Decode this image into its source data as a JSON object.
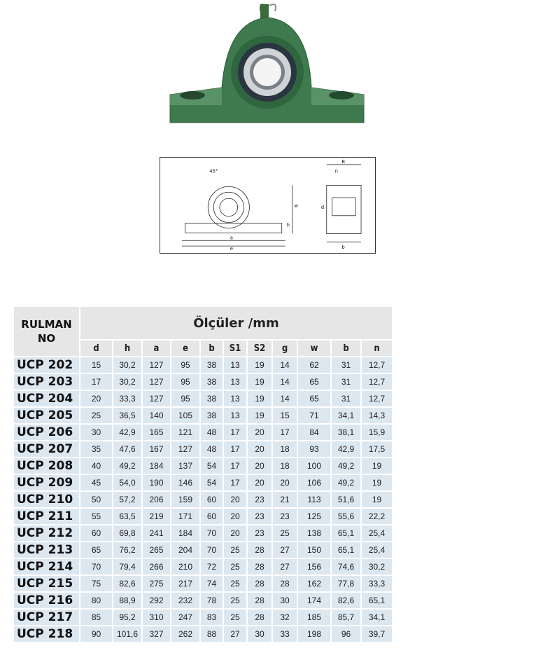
{
  "table": {
    "rowhead": [
      "RULMAN",
      "NO"
    ],
    "title": "Ölçüler /mm",
    "columns": [
      "d",
      "h",
      "a",
      "e",
      "b",
      "S1",
      "S2",
      "g",
      "w",
      "b",
      "n"
    ],
    "rows": [
      {
        "no": "UCP 202",
        "v": [
          "15",
          "30,2",
          "127",
          "95",
          "38",
          "13",
          "19",
          "14",
          "62",
          "31",
          "12,7"
        ]
      },
      {
        "no": "UCP 203",
        "v": [
          "17",
          "30,2",
          "127",
          "95",
          "38",
          "13",
          "19",
          "14",
          "65",
          "31",
          "12,7"
        ]
      },
      {
        "no": "UCP 204",
        "v": [
          "20",
          "33,3",
          "127",
          "95",
          "38",
          "13",
          "19",
          "14",
          "65",
          "31",
          "12,7"
        ]
      },
      {
        "no": "UCP 205",
        "v": [
          "25",
          "36,5",
          "140",
          "105",
          "38",
          "13",
          "19",
          "15",
          "71",
          "34,1",
          "14,3"
        ]
      },
      {
        "no": "UCP 206",
        "v": [
          "30",
          "42,9",
          "165",
          "121",
          "48",
          "17",
          "20",
          "17",
          "84",
          "38,1",
          "15,9"
        ]
      },
      {
        "no": "UCP 207",
        "v": [
          "35",
          "47,6",
          "167",
          "127",
          "48",
          "17",
          "20",
          "18",
          "93",
          "42,9",
          "17,5"
        ]
      },
      {
        "no": "UCP 208",
        "v": [
          "40",
          "49,2",
          "184",
          "137",
          "54",
          "17",
          "20",
          "18",
          "100",
          "49,2",
          "19"
        ]
      },
      {
        "no": "UCP 209",
        "v": [
          "45",
          "54,0",
          "190",
          "146",
          "54",
          "17",
          "20",
          "20",
          "106",
          "49,2",
          "19"
        ]
      },
      {
        "no": "UCP 210",
        "v": [
          "50",
          "57,2",
          "206",
          "159",
          "60",
          "20",
          "23",
          "21",
          "113",
          "51,6",
          "19"
        ]
      },
      {
        "no": "UCP 211",
        "v": [
          "55",
          "63,5",
          "219",
          "171",
          "60",
          "20",
          "23",
          "23",
          "125",
          "55,6",
          "22,2"
        ]
      },
      {
        "no": "UCP 212",
        "v": [
          "60",
          "69,8",
          "241",
          "184",
          "70",
          "20",
          "23",
          "25",
          "138",
          "65,1",
          "25,4"
        ]
      },
      {
        "no": "UCP 213",
        "v": [
          "65",
          "76,2",
          "265",
          "204",
          "70",
          "25",
          "28",
          "27",
          "150",
          "65,1",
          "25,4"
        ]
      },
      {
        "no": "UCP 214",
        "v": [
          "70",
          "79,4",
          "266",
          "210",
          "72",
          "25",
          "28",
          "27",
          "156",
          "74,6",
          "30,2"
        ]
      },
      {
        "no": "UCP 215",
        "v": [
          "75",
          "82,6",
          "275",
          "217",
          "74",
          "25",
          "28",
          "28",
          "162",
          "77,8",
          "33,3"
        ]
      },
      {
        "no": "UCP 216",
        "v": [
          "80",
          "88,9",
          "292",
          "232",
          "78",
          "25",
          "28",
          "30",
          "174",
          "82,6",
          "65,1"
        ]
      },
      {
        "no": "UCP 217",
        "v": [
          "85",
          "95,2",
          "310",
          "247",
          "83",
          "25",
          "28",
          "32",
          "185",
          "85,7",
          "34,1"
        ]
      },
      {
        "no": "UCP 218",
        "v": [
          "90",
          "101,6",
          "327",
          "262",
          "88",
          "27",
          "30",
          "33",
          "198",
          "96",
          "39,7"
        ]
      }
    ]
  },
  "drawing": {
    "labels": [
      "45°",
      "a",
      "e",
      "h",
      "w",
      "B",
      "n",
      "d",
      "b"
    ]
  },
  "colors": {
    "housing": "#3f7a4e",
    "cell": "#dce7f0",
    "header": "#e6e6e6"
  }
}
